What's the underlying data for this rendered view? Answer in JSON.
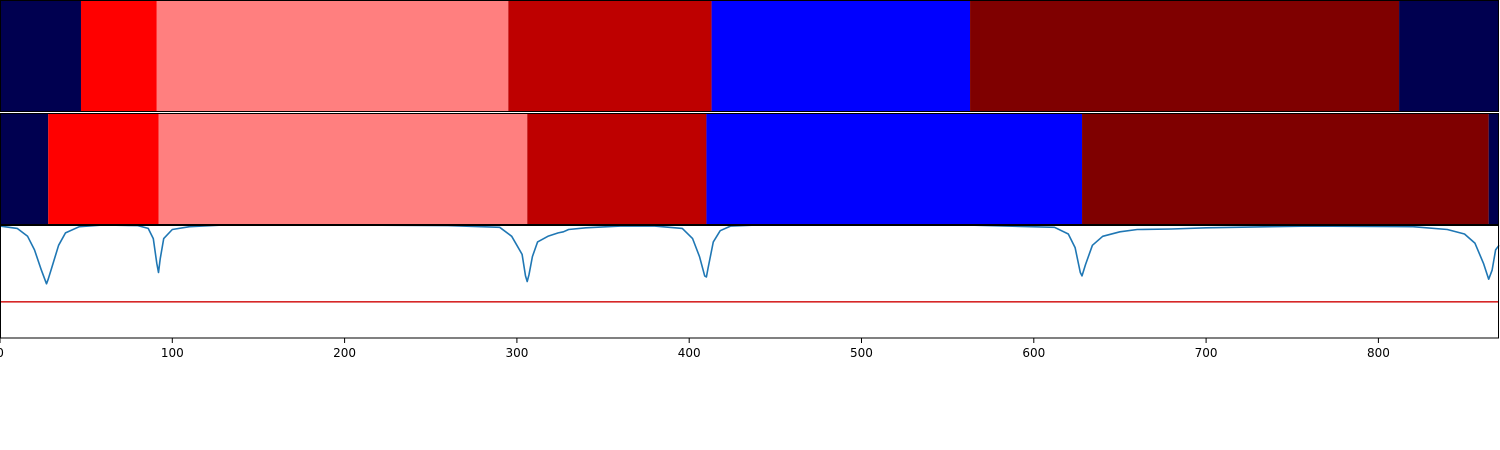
{
  "chart_data": [
    {
      "type": "segment-bar",
      "xlim": [
        0,
        870
      ],
      "colors": {
        "dark_navy": "#000050",
        "red": "#ff0000",
        "salmon": "#ff7f7f",
        "dark_red": "#be0000",
        "blue": "#0000ff",
        "maroon": "#7f0000"
      },
      "segments": [
        {
          "start": 0,
          "end": 47,
          "color": "#000050"
        },
        {
          "start": 47,
          "end": 91,
          "color": "#ff0000"
        },
        {
          "start": 91,
          "end": 295,
          "color": "#ff7f7f"
        },
        {
          "start": 295,
          "end": 413,
          "color": "#be0000"
        },
        {
          "start": 413,
          "end": 563,
          "color": "#0000ff"
        },
        {
          "start": 563,
          "end": 812,
          "color": "#7f0000"
        },
        {
          "start": 812,
          "end": 870,
          "color": "#000050"
        }
      ]
    },
    {
      "type": "segment-bar",
      "xlim": [
        0,
        870
      ],
      "segments": [
        {
          "start": 0,
          "end": 28,
          "color": "#000050"
        },
        {
          "start": 28,
          "end": 92,
          "color": "#ff0000"
        },
        {
          "start": 92,
          "end": 306,
          "color": "#ff7f7f"
        },
        {
          "start": 306,
          "end": 410,
          "color": "#be0000"
        },
        {
          "start": 410,
          "end": 628,
          "color": "#0000ff"
        },
        {
          "start": 628,
          "end": 864,
          "color": "#7f0000"
        },
        {
          "start": 864,
          "end": 870,
          "color": "#000050"
        }
      ]
    },
    {
      "type": "line",
      "xlim": [
        0,
        870
      ],
      "ylim": [
        0,
        1
      ],
      "xticks": [
        0,
        100,
        200,
        300,
        400,
        500,
        600,
        700,
        800
      ],
      "xtick_labels": [
        "0",
        "100",
        "200",
        "300",
        "400",
        "500",
        "600",
        "700",
        "800"
      ],
      "series": [
        {
          "color": "#1f77b4",
          "x": [
            0,
            10,
            16,
            20,
            24,
            27,
            28,
            30,
            34,
            38,
            46,
            60,
            80,
            86,
            89,
            91,
            92,
            93,
            95,
            100,
            110,
            130,
            200,
            260,
            290,
            297,
            300,
            303,
            305,
            306,
            307,
            309,
            312,
            318,
            324,
            327,
            330,
            340,
            360,
            380,
            396,
            402,
            406,
            409,
            410,
            411,
            414,
            418,
            424,
            440,
            500,
            560,
            612,
            620,
            624,
            627,
            628,
            630,
            634,
            640,
            650,
            660,
            680,
            700,
            760,
            820,
            840,
            850,
            856,
            861,
            864,
            866,
            868,
            870
          ],
          "y": [
            0.99,
            0.97,
            0.9,
            0.78,
            0.6,
            0.48,
            0.52,
            0.62,
            0.82,
            0.93,
            0.985,
            1.0,
            0.995,
            0.97,
            0.88,
            0.66,
            0.58,
            0.7,
            0.88,
            0.96,
            0.985,
            1.0,
            1.0,
            0.995,
            0.98,
            0.9,
            0.82,
            0.74,
            0.55,
            0.5,
            0.56,
            0.72,
            0.85,
            0.9,
            0.93,
            0.94,
            0.96,
            0.975,
            0.99,
            0.99,
            0.97,
            0.88,
            0.72,
            0.55,
            0.54,
            0.62,
            0.85,
            0.95,
            0.99,
            1.0,
            1.0,
            1.0,
            0.98,
            0.92,
            0.8,
            0.58,
            0.55,
            0.65,
            0.82,
            0.9,
            0.94,
            0.96,
            0.965,
            0.975,
            0.99,
            0.985,
            0.96,
            0.92,
            0.84,
            0.66,
            0.52,
            0.6,
            0.78,
            0.82
          ]
        },
        {
          "color": "#d62728",
          "x": [
            0,
            870
          ],
          "y": [
            0.32,
            0.32
          ]
        }
      ]
    }
  ]
}
